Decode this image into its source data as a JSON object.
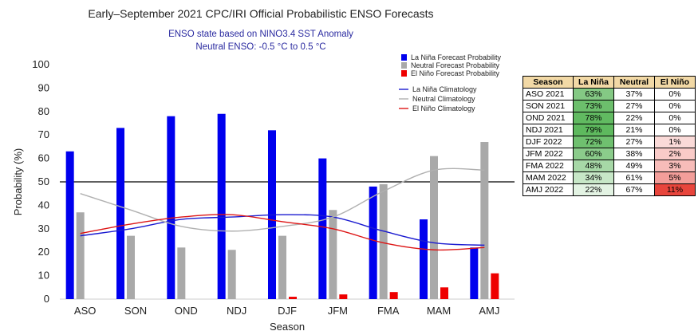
{
  "chart_data": {
    "type": "bar",
    "title": "Early–September 2021 CPC/IRI Official Probabilistic ENSO Forecasts",
    "subtitle_1": "ENSO state based on NINO3.4 SST Anomaly",
    "subtitle_2": "Neutral ENSO: -0.5 °C to 0.5 °C",
    "xlabel": "Season",
    "ylabel": "Probability (%)",
    "ylim": [
      0,
      100
    ],
    "yticks": [
      0,
      10,
      20,
      30,
      40,
      50,
      60,
      70,
      80,
      90,
      100
    ],
    "reference_line": 50,
    "categories": [
      "ASO",
      "SON",
      "OND",
      "NDJ",
      "DJF",
      "JFM",
      "FMA",
      "MAM",
      "AMJ"
    ],
    "series": [
      {
        "name": "La Niña Forecast Probability",
        "color": "#0000ee",
        "values": [
          63,
          73,
          78,
          79,
          72,
          60,
          48,
          34,
          22
        ]
      },
      {
        "name": "Neutral Forecast Probability",
        "color": "#a9a9a9",
        "values": [
          37,
          27,
          22,
          21,
          27,
          38,
          49,
          61,
          67
        ]
      },
      {
        "name": "El Niño Forecast Probability",
        "color": "#ee0000",
        "values": [
          0,
          0,
          0,
          0,
          1,
          2,
          3,
          5,
          11
        ]
      }
    ],
    "climatology": [
      {
        "name": "La Niña Climatology",
        "color": "#1a1ad0",
        "values": [
          27,
          30,
          34,
          35,
          36,
          35,
          29,
          24,
          23
        ]
      },
      {
        "name": "Neutral Climatology",
        "color": "#b0b0b0",
        "values": [
          45,
          38,
          31,
          29,
          31,
          35,
          46,
          55,
          55
        ]
      },
      {
        "name": "El Niño Climatology",
        "color": "#dd1515",
        "values": [
          28,
          32,
          35,
          36,
          33,
          30,
          24,
          21,
          22
        ]
      }
    ],
    "legend_position": "top-right"
  },
  "table": {
    "headers": [
      "Season",
      "La Niña",
      "Neutral",
      "El Niño"
    ],
    "rows": [
      {
        "season": "ASO 2021",
        "la_nina": "63%",
        "neutral": "37%",
        "el_nino": "0%"
      },
      {
        "season": "SON 2021",
        "la_nina": "73%",
        "neutral": "27%",
        "el_nino": "0%"
      },
      {
        "season": "OND 2021",
        "la_nina": "78%",
        "neutral": "22%",
        "el_nino": "0%"
      },
      {
        "season": "NDJ 2021",
        "la_nina": "79%",
        "neutral": "21%",
        "el_nino": "0%"
      },
      {
        "season": "DJF 2022",
        "la_nina": "72%",
        "neutral": "27%",
        "el_nino": "1%"
      },
      {
        "season": "JFM 2022",
        "la_nina": "60%",
        "neutral": "38%",
        "el_nino": "2%"
      },
      {
        "season": "FMA 2022",
        "la_nina": "48%",
        "neutral": "49%",
        "el_nino": "3%"
      },
      {
        "season": "MAM 2022",
        "la_nina": "34%",
        "neutral": "61%",
        "el_nino": "5%"
      },
      {
        "season": "AMJ 2022",
        "la_nina": "22%",
        "neutral": "67%",
        "el_nino": "11%"
      }
    ],
    "colors": {
      "la_nina_base": "#5cb85c",
      "el_nino_base": "#e8453c"
    }
  }
}
